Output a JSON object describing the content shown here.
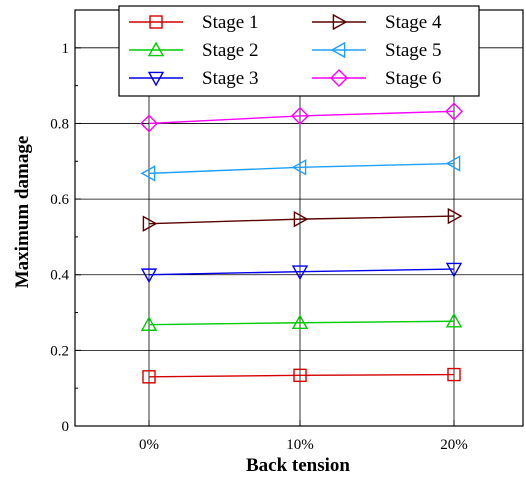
{
  "chart_data": {
    "type": "line",
    "title": "",
    "xlabel": "Back tension",
    "ylabel": "Maximum damage",
    "categories": [
      "0%",
      "10%",
      "20%"
    ],
    "ylim": [
      0,
      1.1
    ],
    "yticks": [
      0,
      0.2,
      0.4,
      0.6,
      0.8,
      1
    ],
    "ytick_labels": [
      "0",
      "0.2",
      "0.4",
      "0.6",
      "0.8",
      "1"
    ],
    "grid": true,
    "legend_position": "top-center",
    "series": [
      {
        "name": "Stage 1",
        "values": [
          0.13,
          0.134,
          0.136
        ],
        "color": "#d40000",
        "marker": "square"
      },
      {
        "name": "Stage 2",
        "values": [
          0.268,
          0.273,
          0.277
        ],
        "color": "#00cc00",
        "marker": "triangle-up"
      },
      {
        "name": "Stage 3",
        "values": [
          0.4,
          0.408,
          0.415
        ],
        "color": "#0000ee",
        "marker": "triangle-down"
      },
      {
        "name": "Stage 4",
        "values": [
          0.535,
          0.547,
          0.555
        ],
        "color": "#5a0000",
        "marker": "triangle-right"
      },
      {
        "name": "Stage 5",
        "values": [
          0.668,
          0.684,
          0.694
        ],
        "color": "#1fa0ff",
        "marker": "triangle-left"
      },
      {
        "name": "Stage 6",
        "values": [
          0.8,
          0.82,
          0.832
        ],
        "color": "#ff00ff",
        "marker": "diamond"
      }
    ]
  }
}
